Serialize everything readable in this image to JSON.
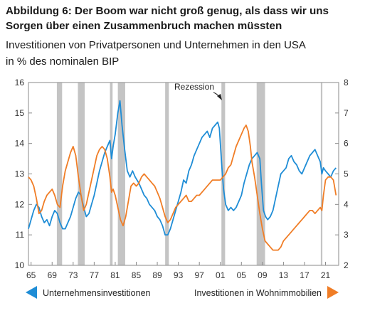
{
  "title_line1": "Abbildung 6: Der Boom war nicht groß genug, als dass wir uns",
  "title_line2": "Sorgen über einen Zusammenbruch machen müssten",
  "subtitle": "Investitionen von Privatpersonen und Unternehmen in den USA",
  "unit": "in % des nominalen BIP",
  "chart_data": {
    "type": "line",
    "annotation": "Rezession",
    "x_ticks": [
      "65",
      "69",
      "73",
      "77",
      "81",
      "85",
      "89",
      "93",
      "97",
      "01",
      "05",
      "09",
      "13",
      "17",
      "21"
    ],
    "y_left_ticks": [
      "10",
      "11",
      "12",
      "13",
      "14",
      "15",
      "16"
    ],
    "y_right_ticks": [
      "2",
      "3",
      "4",
      "5",
      "6",
      "7",
      "8"
    ],
    "xlim": [
      1964.5,
      2023.5
    ],
    "ylim_left": [
      10,
      16
    ],
    "ylim_right": [
      2,
      8
    ],
    "grid": false,
    "recessions": [
      [
        1969.9,
        1970.9
      ],
      [
        1973.9,
        1975.2
      ],
      [
        1980.0,
        1980.5
      ],
      [
        1981.5,
        1982.9
      ],
      [
        1990.5,
        1991.2
      ],
      [
        2001.2,
        2001.9
      ],
      [
        2007.9,
        2009.5
      ],
      [
        2020.1,
        2020.4
      ]
    ],
    "series": [
      {
        "name": "Unternehmensinvestitionen",
        "axis": "left",
        "color": "#1f8dd6",
        "legend_marker": "left-triangle",
        "points": [
          [
            1964.5,
            11.2
          ],
          [
            1965.0,
            11.5
          ],
          [
            1965.5,
            11.8
          ],
          [
            1966.0,
            12.0
          ],
          [
            1966.5,
            11.9
          ],
          [
            1967.0,
            11.6
          ],
          [
            1967.5,
            11.4
          ],
          [
            1968.0,
            11.5
          ],
          [
            1968.5,
            11.3
          ],
          [
            1969.0,
            11.6
          ],
          [
            1969.5,
            11.8
          ],
          [
            1970.0,
            11.7
          ],
          [
            1970.5,
            11.4
          ],
          [
            1971.0,
            11.2
          ],
          [
            1971.5,
            11.2
          ],
          [
            1972.0,
            11.4
          ],
          [
            1972.5,
            11.6
          ],
          [
            1973.0,
            11.9
          ],
          [
            1973.5,
            12.2
          ],
          [
            1974.0,
            12.4
          ],
          [
            1974.5,
            12.3
          ],
          [
            1975.0,
            11.9
          ],
          [
            1975.5,
            11.6
          ],
          [
            1976.0,
            11.7
          ],
          [
            1976.5,
            12.0
          ],
          [
            1977.0,
            12.3
          ],
          [
            1977.5,
            12.7
          ],
          [
            1978.0,
            13.1
          ],
          [
            1978.5,
            13.4
          ],
          [
            1979.0,
            13.7
          ],
          [
            1979.5,
            13.9
          ],
          [
            1980.0,
            14.1
          ],
          [
            1980.3,
            13.5
          ],
          [
            1980.6,
            13.9
          ],
          [
            1981.0,
            14.3
          ],
          [
            1981.5,
            15.0
          ],
          [
            1981.9,
            15.4
          ],
          [
            1982.3,
            14.6
          ],
          [
            1982.8,
            13.8
          ],
          [
            1983.3,
            13.1
          ],
          [
            1983.8,
            12.9
          ],
          [
            1984.3,
            13.1
          ],
          [
            1984.8,
            12.9
          ],
          [
            1985.5,
            12.7
          ],
          [
            1986.0,
            12.5
          ],
          [
            1986.5,
            12.3
          ],
          [
            1987.0,
            12.2
          ],
          [
            1987.5,
            12.0
          ],
          [
            1988.0,
            11.9
          ],
          [
            1988.5,
            11.8
          ],
          [
            1989.0,
            11.6
          ],
          [
            1989.5,
            11.5
          ],
          [
            1990.0,
            11.3
          ],
          [
            1990.5,
            11.0
          ],
          [
            1991.0,
            11.0
          ],
          [
            1991.5,
            11.2
          ],
          [
            1992.0,
            11.5
          ],
          [
            1992.5,
            11.8
          ],
          [
            1993.0,
            12.1
          ],
          [
            1993.5,
            12.4
          ],
          [
            1994.0,
            12.8
          ],
          [
            1994.5,
            12.7
          ],
          [
            1995.0,
            13.1
          ],
          [
            1995.5,
            13.3
          ],
          [
            1996.0,
            13.6
          ],
          [
            1996.5,
            13.8
          ],
          [
            1997.0,
            14.0
          ],
          [
            1997.5,
            14.2
          ],
          [
            1998.0,
            14.3
          ],
          [
            1998.5,
            14.4
          ],
          [
            1999.0,
            14.2
          ],
          [
            1999.5,
            14.5
          ],
          [
            2000.0,
            14.6
          ],
          [
            2000.5,
            14.7
          ],
          [
            2000.8,
            14.5
          ],
          [
            2001.0,
            14.0
          ],
          [
            2001.3,
            13.2
          ],
          [
            2001.6,
            12.5
          ],
          [
            2002.0,
            12.0
          ],
          [
            2002.5,
            11.8
          ],
          [
            2003.0,
            11.9
          ],
          [
            2003.5,
            11.8
          ],
          [
            2004.0,
            11.9
          ],
          [
            2004.5,
            12.1
          ],
          [
            2005.0,
            12.3
          ],
          [
            2005.5,
            12.7
          ],
          [
            2006.0,
            13.0
          ],
          [
            2006.5,
            13.3
          ],
          [
            2007.0,
            13.5
          ],
          [
            2007.5,
            13.6
          ],
          [
            2008.0,
            13.7
          ],
          [
            2008.5,
            13.5
          ],
          [
            2008.8,
            12.7
          ],
          [
            2009.2,
            11.8
          ],
          [
            2009.6,
            11.6
          ],
          [
            2010.0,
            11.5
          ],
          [
            2010.5,
            11.6
          ],
          [
            2011.0,
            11.8
          ],
          [
            2011.5,
            12.2
          ],
          [
            2012.0,
            12.6
          ],
          [
            2012.5,
            13.0
          ],
          [
            2013.0,
            13.1
          ],
          [
            2013.5,
            13.2
          ],
          [
            2014.0,
            13.5
          ],
          [
            2014.5,
            13.6
          ],
          [
            2015.0,
            13.4
          ],
          [
            2015.5,
            13.3
          ],
          [
            2016.0,
            13.1
          ],
          [
            2016.5,
            13.0
          ],
          [
            2017.0,
            13.2
          ],
          [
            2017.5,
            13.4
          ],
          [
            2018.0,
            13.6
          ],
          [
            2018.5,
            13.7
          ],
          [
            2019.0,
            13.8
          ],
          [
            2019.5,
            13.6
          ],
          [
            2020.0,
            13.4
          ],
          [
            2020.3,
            13.0
          ],
          [
            2020.6,
            13.2
          ],
          [
            2021.0,
            13.1
          ],
          [
            2021.5,
            13.0
          ],
          [
            2022.0,
            12.9
          ],
          [
            2022.5,
            13.1
          ],
          [
            2023.0,
            13.2
          ]
        ]
      },
      {
        "name": "Investitionen in Wohnimmobilien",
        "axis": "right",
        "color": "#f07d26",
        "legend_marker": "right-triangle",
        "points": [
          [
            1964.5,
            4.9
          ],
          [
            1965.0,
            4.8
          ],
          [
            1965.5,
            4.6
          ],
          [
            1966.0,
            4.2
          ],
          [
            1966.5,
            3.7
          ],
          [
            1967.0,
            3.8
          ],
          [
            1967.5,
            4.1
          ],
          [
            1968.0,
            4.3
          ],
          [
            1968.5,
            4.4
          ],
          [
            1969.0,
            4.5
          ],
          [
            1969.5,
            4.3
          ],
          [
            1970.0,
            4.0
          ],
          [
            1970.5,
            3.9
          ],
          [
            1971.0,
            4.6
          ],
          [
            1971.5,
            5.1
          ],
          [
            1972.0,
            5.4
          ],
          [
            1972.5,
            5.7
          ],
          [
            1973.0,
            5.9
          ],
          [
            1973.5,
            5.6
          ],
          [
            1974.0,
            4.9
          ],
          [
            1974.5,
            4.3
          ],
          [
            1975.0,
            3.8
          ],
          [
            1975.5,
            4.0
          ],
          [
            1976.0,
            4.4
          ],
          [
            1976.5,
            4.8
          ],
          [
            1977.0,
            5.2
          ],
          [
            1977.5,
            5.6
          ],
          [
            1978.0,
            5.8
          ],
          [
            1978.5,
            5.9
          ],
          [
            1979.0,
            5.8
          ],
          [
            1979.5,
            5.5
          ],
          [
            1980.0,
            4.9
          ],
          [
            1980.3,
            4.4
          ],
          [
            1980.6,
            4.5
          ],
          [
            1981.0,
            4.3
          ],
          [
            1981.5,
            3.9
          ],
          [
            1982.0,
            3.5
          ],
          [
            1982.5,
            3.3
          ],
          [
            1983.0,
            3.6
          ],
          [
            1983.5,
            4.1
          ],
          [
            1984.0,
            4.6
          ],
          [
            1984.5,
            4.7
          ],
          [
            1985.0,
            4.6
          ],
          [
            1985.5,
            4.7
          ],
          [
            1986.0,
            4.9
          ],
          [
            1986.5,
            5.0
          ],
          [
            1987.0,
            4.9
          ],
          [
            1987.5,
            4.8
          ],
          [
            1988.0,
            4.7
          ],
          [
            1988.5,
            4.6
          ],
          [
            1989.0,
            4.4
          ],
          [
            1989.5,
            4.2
          ],
          [
            1990.0,
            3.9
          ],
          [
            1990.5,
            3.6
          ],
          [
            1991.0,
            3.4
          ],
          [
            1991.5,
            3.5
          ],
          [
            1992.0,
            3.7
          ],
          [
            1992.5,
            3.9
          ],
          [
            1993.0,
            4.0
          ],
          [
            1993.5,
            4.1
          ],
          [
            1994.0,
            4.2
          ],
          [
            1994.5,
            4.3
          ],
          [
            1995.0,
            4.1
          ],
          [
            1995.5,
            4.1
          ],
          [
            1996.0,
            4.2
          ],
          [
            1996.5,
            4.3
          ],
          [
            1997.0,
            4.3
          ],
          [
            1997.5,
            4.4
          ],
          [
            1998.0,
            4.5
          ],
          [
            1998.5,
            4.6
          ],
          [
            1999.0,
            4.7
          ],
          [
            1999.5,
            4.8
          ],
          [
            2000.0,
            4.8
          ],
          [
            2000.5,
            4.8
          ],
          [
            2001.0,
            4.8
          ],
          [
            2001.5,
            4.9
          ],
          [
            2002.0,
            5.0
          ],
          [
            2002.5,
            5.2
          ],
          [
            2003.0,
            5.3
          ],
          [
            2003.5,
            5.6
          ],
          [
            2004.0,
            5.9
          ],
          [
            2004.5,
            6.1
          ],
          [
            2005.0,
            6.3
          ],
          [
            2005.5,
            6.5
          ],
          [
            2005.9,
            6.6
          ],
          [
            2006.3,
            6.4
          ],
          [
            2006.7,
            5.9
          ],
          [
            2007.0,
            5.4
          ],
          [
            2007.5,
            4.9
          ],
          [
            2008.0,
            4.3
          ],
          [
            2008.5,
            3.7
          ],
          [
            2009.0,
            3.2
          ],
          [
            2009.5,
            2.8
          ],
          [
            2010.0,
            2.7
          ],
          [
            2010.5,
            2.6
          ],
          [
            2011.0,
            2.5
          ],
          [
            2011.5,
            2.5
          ],
          [
            2012.0,
            2.5
          ],
          [
            2012.5,
            2.6
          ],
          [
            2013.0,
            2.8
          ],
          [
            2013.5,
            2.9
          ],
          [
            2014.0,
            3.0
          ],
          [
            2014.5,
            3.1
          ],
          [
            2015.0,
            3.2
          ],
          [
            2015.5,
            3.3
          ],
          [
            2016.0,
            3.4
          ],
          [
            2016.5,
            3.5
          ],
          [
            2017.0,
            3.6
          ],
          [
            2017.5,
            3.7
          ],
          [
            2018.0,
            3.8
          ],
          [
            2018.5,
            3.8
          ],
          [
            2019.0,
            3.7
          ],
          [
            2019.5,
            3.8
          ],
          [
            2020.0,
            3.9
          ],
          [
            2020.3,
            3.8
          ],
          [
            2020.6,
            4.3
          ],
          [
            2021.0,
            4.8
          ],
          [
            2021.5,
            4.9
          ],
          [
            2022.0,
            4.9
          ],
          [
            2022.5,
            4.8
          ],
          [
            2023.0,
            4.3
          ]
        ]
      }
    ]
  }
}
